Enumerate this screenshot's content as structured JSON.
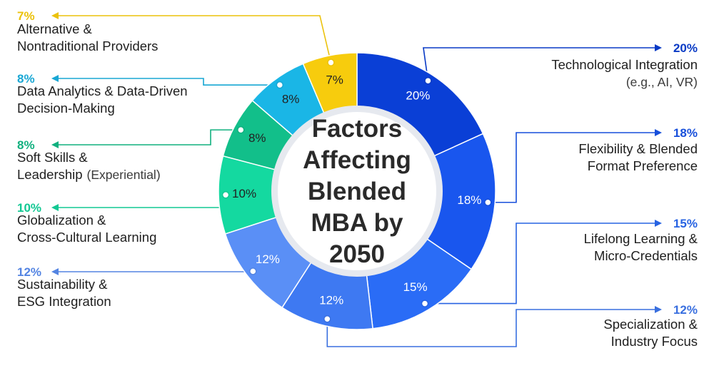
{
  "chart_data": {
    "type": "donut",
    "title_lines": [
      "Factors",
      "Affecting",
      "Blended",
      "MBA by",
      "2050"
    ],
    "slices": [
      {
        "label_lines": [
          "Technological Integration"
        ],
        "sub": "(e.g., AI, VR)",
        "value": 20,
        "display": "20%",
        "color": "#0a3fd6",
        "side": "right"
      },
      {
        "label_lines": [
          "Flexibility & Blended",
          "Format Preference"
        ],
        "sub": "",
        "value": 18,
        "display": "18%",
        "color": "#1956ee",
        "side": "right"
      },
      {
        "label_lines": [
          "Lifelong Learning &",
          "Micro-Credentials"
        ],
        "sub": "",
        "value": 15,
        "display": "15%",
        "color": "#2a6cf6",
        "side": "right"
      },
      {
        "label_lines": [
          "Specialization &",
          "Industry Focus"
        ],
        "sub": "",
        "value": 12,
        "display": "12%",
        "color": "#3e79f2",
        "side": "right"
      },
      {
        "label_lines": [
          "Sustainability &",
          "ESG Integration"
        ],
        "sub": "",
        "value": 12,
        "display": "12%",
        "color": "#5a8ff6",
        "side": "left"
      },
      {
        "label_lines": [
          "Globalization &",
          "Cross-Cultural Learning"
        ],
        "sub": "",
        "value": 10,
        "display": "10%",
        "color": "#14d9a0",
        "side": "left"
      },
      {
        "label_lines": [
          "Soft Skills &",
          "Leadership"
        ],
        "sub": "(Experiential)",
        "value": 8,
        "display": "8%",
        "color": "#12bf8a",
        "side": "left"
      },
      {
        "label_lines": [
          "Data Analytics & Data-Driven",
          "Decision-Making"
        ],
        "sub": "",
        "value": 8,
        "display": "8%",
        "color": "#1ab6e6",
        "side": "left"
      },
      {
        "label_lines": [
          "Alternative &",
          "Nontraditional Providers"
        ],
        "sub": "",
        "value": 7,
        "display": "7%",
        "color": "#f7cc0d",
        "side": "left"
      }
    ]
  }
}
